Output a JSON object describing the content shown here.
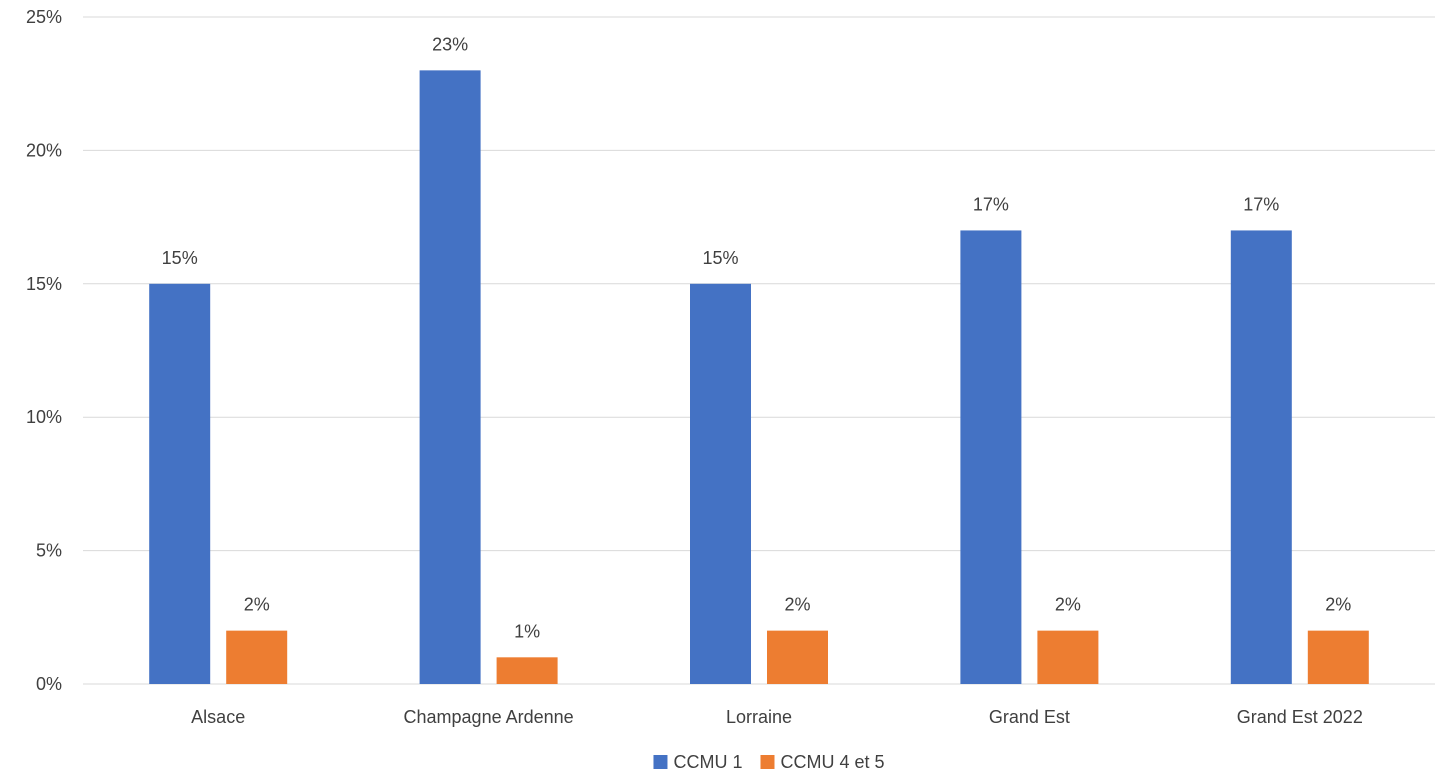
{
  "chart_data": {
    "type": "bar",
    "categories": [
      "Alsace",
      "Champagne Ardenne",
      "Lorraine",
      "Grand Est",
      "Grand Est 2022"
    ],
    "series": [
      {
        "name": "CCMU 1",
        "values": [
          15,
          23,
          15,
          17,
          17
        ],
        "labels": [
          "15%",
          "23%",
          "15%",
          "17%",
          "17%"
        ],
        "color": "#4472c4"
      },
      {
        "name": "CCMU 4 et 5",
        "values": [
          2,
          1,
          2,
          2,
          2
        ],
        "labels": [
          "2%",
          "1%",
          "2%",
          "2%",
          "2%"
        ],
        "color": "#ed7d31"
      }
    ],
    "yticks": [
      0,
      5,
      10,
      15,
      20,
      25
    ],
    "ytick_labels": [
      "0%",
      "5%",
      "10%",
      "15%",
      "20%",
      "25%"
    ],
    "ylim": [
      0,
      25
    ],
    "grid": true,
    "legend_position": "bottom",
    "title": "",
    "xlabel": "",
    "ylabel": ""
  }
}
